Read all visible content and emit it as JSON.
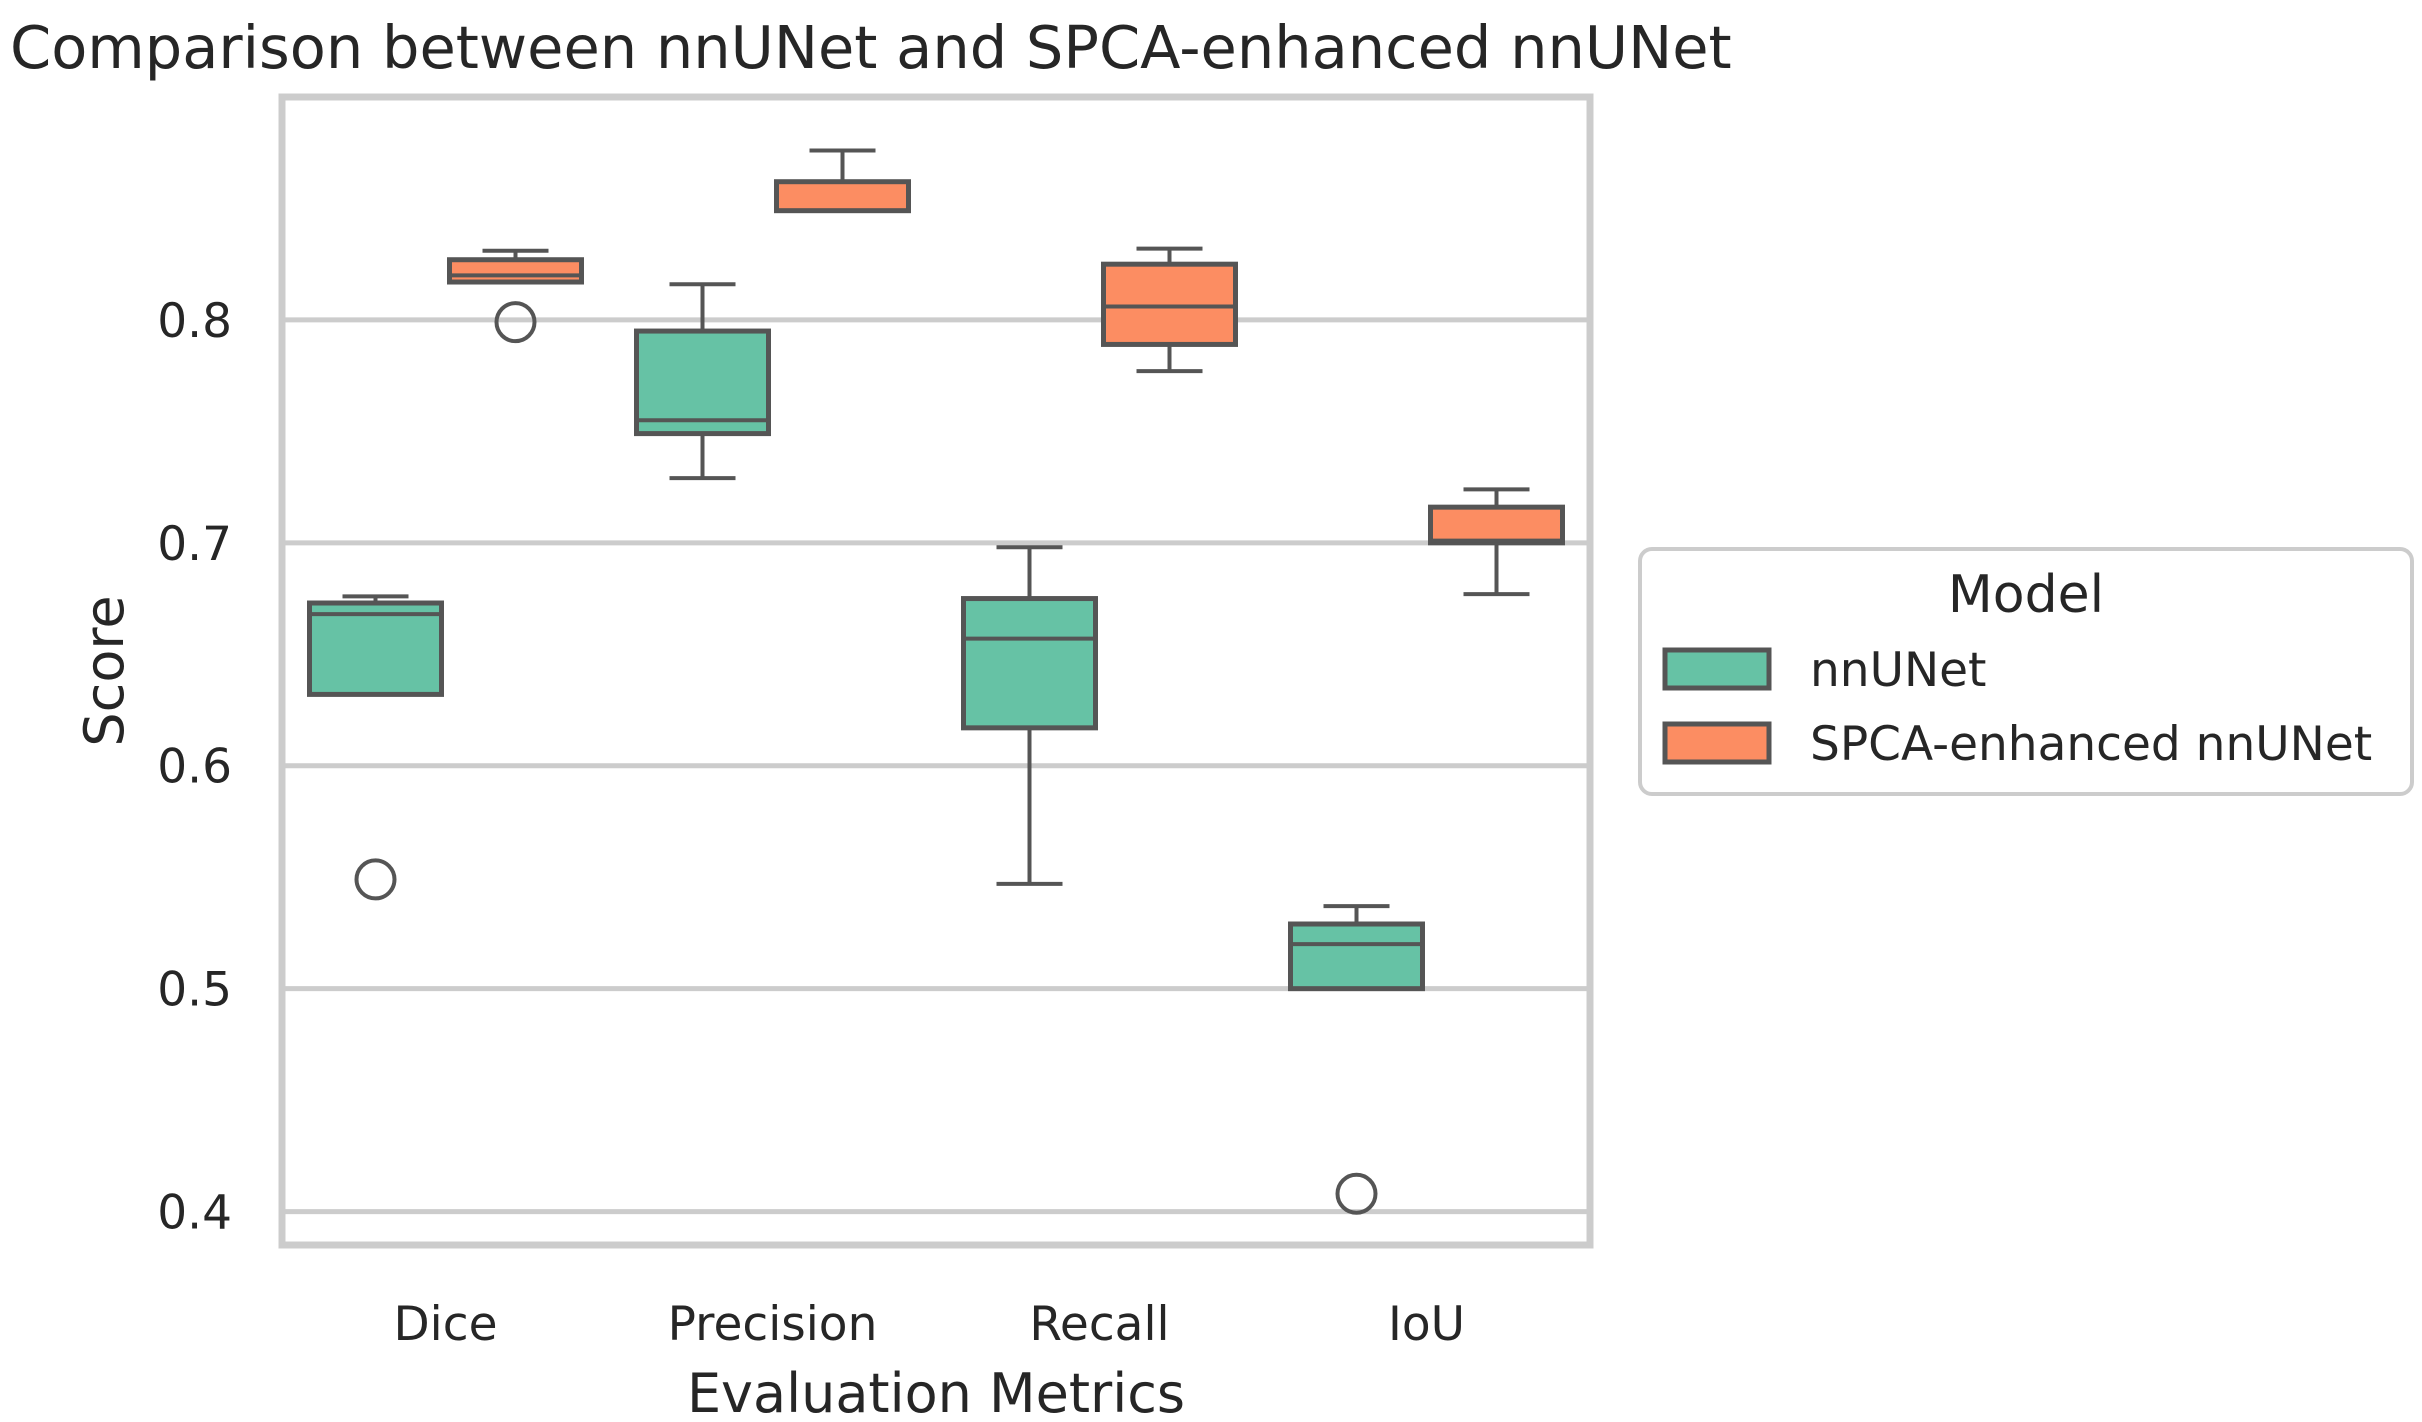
{
  "chart_data": {
    "type": "boxplot",
    "title": "Comparison between nnUNet and SPCA-enhanced nnUNet",
    "xlabel": "Evaluation Metrics",
    "ylabel": "Score",
    "categories": [
      "Dice",
      "Precision",
      "Recall",
      "IoU"
    ],
    "ylim": [
      0.385,
      0.9
    ],
    "yticks": [
      0.4,
      0.5,
      0.6,
      0.7,
      0.8
    ],
    "ytick_labels": [
      "0.4",
      "0.5",
      "0.6",
      "0.7",
      "0.8"
    ],
    "grid": "horizontal",
    "legend": {
      "title": "Model",
      "placement": "right-outside"
    },
    "series": [
      {
        "name": "nnUNet",
        "color": "#66c2a5",
        "boxes": [
          {
            "category": "Dice",
            "whisker_low": 0.632,
            "q1": 0.632,
            "median": 0.668,
            "q3": 0.673,
            "whisker_high": 0.676,
            "outliers": [
              0.549
            ]
          },
          {
            "category": "Precision",
            "whisker_low": 0.729,
            "q1": 0.749,
            "median": 0.755,
            "q3": 0.795,
            "whisker_high": 0.816,
            "outliers": []
          },
          {
            "category": "Recall",
            "whisker_low": 0.547,
            "q1": 0.617,
            "median": 0.657,
            "q3": 0.675,
            "whisker_high": 0.698,
            "outliers": []
          },
          {
            "category": "IoU",
            "whisker_low": 0.5,
            "q1": 0.5,
            "median": 0.52,
            "q3": 0.529,
            "whisker_high": 0.537,
            "outliers": [
              0.408
            ]
          }
        ]
      },
      {
        "name": "SPCA-enhanced nnUNet",
        "color": "#fc8d62",
        "boxes": [
          {
            "category": "Dice",
            "whisker_low": 0.817,
            "q1": 0.817,
            "median": 0.82,
            "q3": 0.827,
            "whisker_high": 0.831,
            "outliers": [
              0.799
            ]
          },
          {
            "category": "Precision",
            "whisker_low": 0.849,
            "q1": 0.849,
            "median": 0.849,
            "q3": 0.862,
            "whisker_high": 0.876,
            "outliers": []
          },
          {
            "category": "Recall",
            "whisker_low": 0.777,
            "q1": 0.789,
            "median": 0.806,
            "q3": 0.825,
            "whisker_high": 0.832,
            "outliers": []
          },
          {
            "category": "IoU",
            "whisker_low": 0.677,
            "q1": 0.7,
            "median": 0.701,
            "q3": 0.716,
            "whisker_high": 0.724,
            "outliers": []
          }
        ]
      }
    ]
  }
}
